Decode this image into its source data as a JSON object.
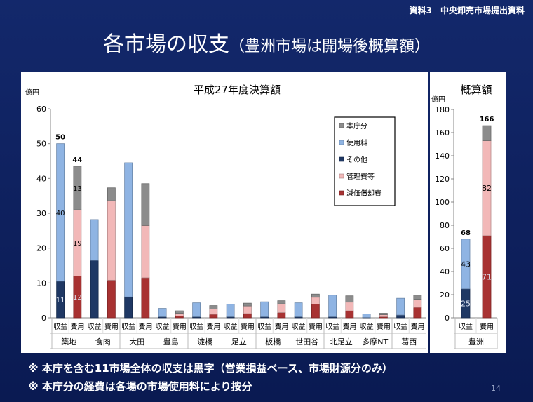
{
  "header": {
    "doc_label": "資料3　中央卸売市場提出資料",
    "title": "各市場の収支",
    "subtitle": "（豊洲市場は開場後概算額）"
  },
  "notes": [
    "※ 本庁を含む11市場全体の収支は黒字（営業損益ベース、市場財源分のみ）",
    "※ 本庁分の経費は各場の市場使用料により按分"
  ],
  "footer": {
    "page": "14"
  },
  "colors": {
    "本庁分": "#8c8c8c",
    "使用料": "#8fb4e3",
    "その他": "#1f3864",
    "管理費等": "#f2b8b8",
    "減価償却費": "#a83232"
  },
  "chart_data": [
    {
      "type": "bar",
      "stacked": true,
      "title": "平成27年度決算額",
      "ylabel": "億円",
      "ylim": [
        0,
        60
      ],
      "yticks": [
        0,
        10,
        20,
        30,
        40,
        50,
        60
      ],
      "grid": false,
      "legend": {
        "position": "top-right",
        "entries": [
          "本庁分",
          "使用料",
          "その他",
          "管理費等",
          "減価償却費"
        ]
      },
      "bar_types": [
        "収益",
        "費用"
      ],
      "markets": [
        {
          "name": "築地",
          "revenue": {
            "その他": 10.5,
            "使用料": 39.5
          },
          "expense": {
            "減価償却費": 12,
            "管理費等": 19,
            "本庁分": 12.5
          }
        },
        {
          "name": "食肉",
          "revenue": {
            "その他": 16.5,
            "使用料": 11.7
          },
          "expense": {
            "減価償却費": 10.8,
            "管理費等": 22.8,
            "本庁分": 3.7
          }
        },
        {
          "name": "大田",
          "revenue": {
            "その他": 6,
            "使用料": 38.5
          },
          "expense": {
            "減価償却費": 11.5,
            "管理費等": 15,
            "本庁分": 12
          }
        },
        {
          "name": "豊島",
          "revenue": {
            "その他": 0.3,
            "使用料": 2.4
          },
          "expense": {
            "減価償却費": 0.5,
            "管理費等": 0.8,
            "本庁分": 0.7
          }
        },
        {
          "name": "淀橋",
          "revenue": {
            "その他": 0.3,
            "使用料": 4
          },
          "expense": {
            "減価償却費": 1,
            "管理費等": 1.5,
            "本庁分": 1
          }
        },
        {
          "name": "足立",
          "revenue": {
            "その他": 0.3,
            "使用料": 3.6
          },
          "expense": {
            "減価償却費": 1.2,
            "管理費等": 2.2,
            "本庁分": 0.8
          }
        },
        {
          "name": "板橋",
          "revenue": {
            "その他": 0.3,
            "使用料": 4.3
          },
          "expense": {
            "減価償却費": 1.5,
            "管理費等": 2.5,
            "本庁分": 0.9
          }
        },
        {
          "name": "世田谷",
          "revenue": {
            "その他": 0.3,
            "使用料": 4
          },
          "expense": {
            "減価償却費": 3.9,
            "管理費等": 2,
            "本庁分": 0.9
          }
        },
        {
          "name": "北足立",
          "revenue": {
            "その他": 0.3,
            "使用料": 6.2
          },
          "expense": {
            "減価償却費": 2,
            "管理費等": 2.5,
            "本庁分": 1.8
          }
        },
        {
          "name": "多摩NT",
          "revenue": {
            "その他": 0.1,
            "使用料": 1
          },
          "expense": {
            "減価償却費": 0.3,
            "管理費等": 0.6,
            "本庁分": 0.4
          }
        },
        {
          "name": "葛西",
          "revenue": {
            "その他": 0.8,
            "使用料": 4.8
          },
          "expense": {
            "減価償却費": 3,
            "管理費等": 2.3,
            "本庁分": 1.2
          }
        }
      ],
      "totals": {
        "築地": {
          "収益": 50,
          "費用": 44
        }
      },
      "data_labels": [
        {
          "market": "築地",
          "bar": "収益",
          "segment": "その他",
          "text": "11"
        },
        {
          "market": "築地",
          "bar": "収益",
          "segment": "使用料",
          "text": "40"
        },
        {
          "market": "築地",
          "bar": "費用",
          "segment": "減価償却費",
          "text": "12"
        },
        {
          "market": "築地",
          "bar": "費用",
          "segment": "管理費等",
          "text": "19"
        },
        {
          "market": "築地",
          "bar": "費用",
          "segment": "本庁分",
          "text": "13"
        }
      ]
    },
    {
      "type": "bar",
      "stacked": true,
      "title": "概算額",
      "ylabel": "億円",
      "ylim": [
        0,
        180
      ],
      "yticks": [
        0,
        20,
        40,
        60,
        80,
        100,
        120,
        140,
        160,
        180
      ],
      "grid": false,
      "bar_types": [
        "収益",
        "費用"
      ],
      "markets": [
        {
          "name": "豊洲",
          "revenue": {
            "その他": 25,
            "使用料": 43
          },
          "expense": {
            "減価償却費": 71,
            "管理費等": 82,
            "本庁分": 13
          }
        }
      ],
      "totals": {
        "豊洲": {
          "収益": 68,
          "費用": 166
        }
      },
      "data_labels": [
        {
          "market": "豊洲",
          "bar": "収益",
          "segment": "その他",
          "text": "25"
        },
        {
          "market": "豊洲",
          "bar": "収益",
          "segment": "使用料",
          "text": "43"
        },
        {
          "market": "豊洲",
          "bar": "費用",
          "segment": "減価償却費",
          "text": "71"
        },
        {
          "market": "豊洲",
          "bar": "費用",
          "segment": "管理費等",
          "text": "82"
        }
      ]
    }
  ]
}
